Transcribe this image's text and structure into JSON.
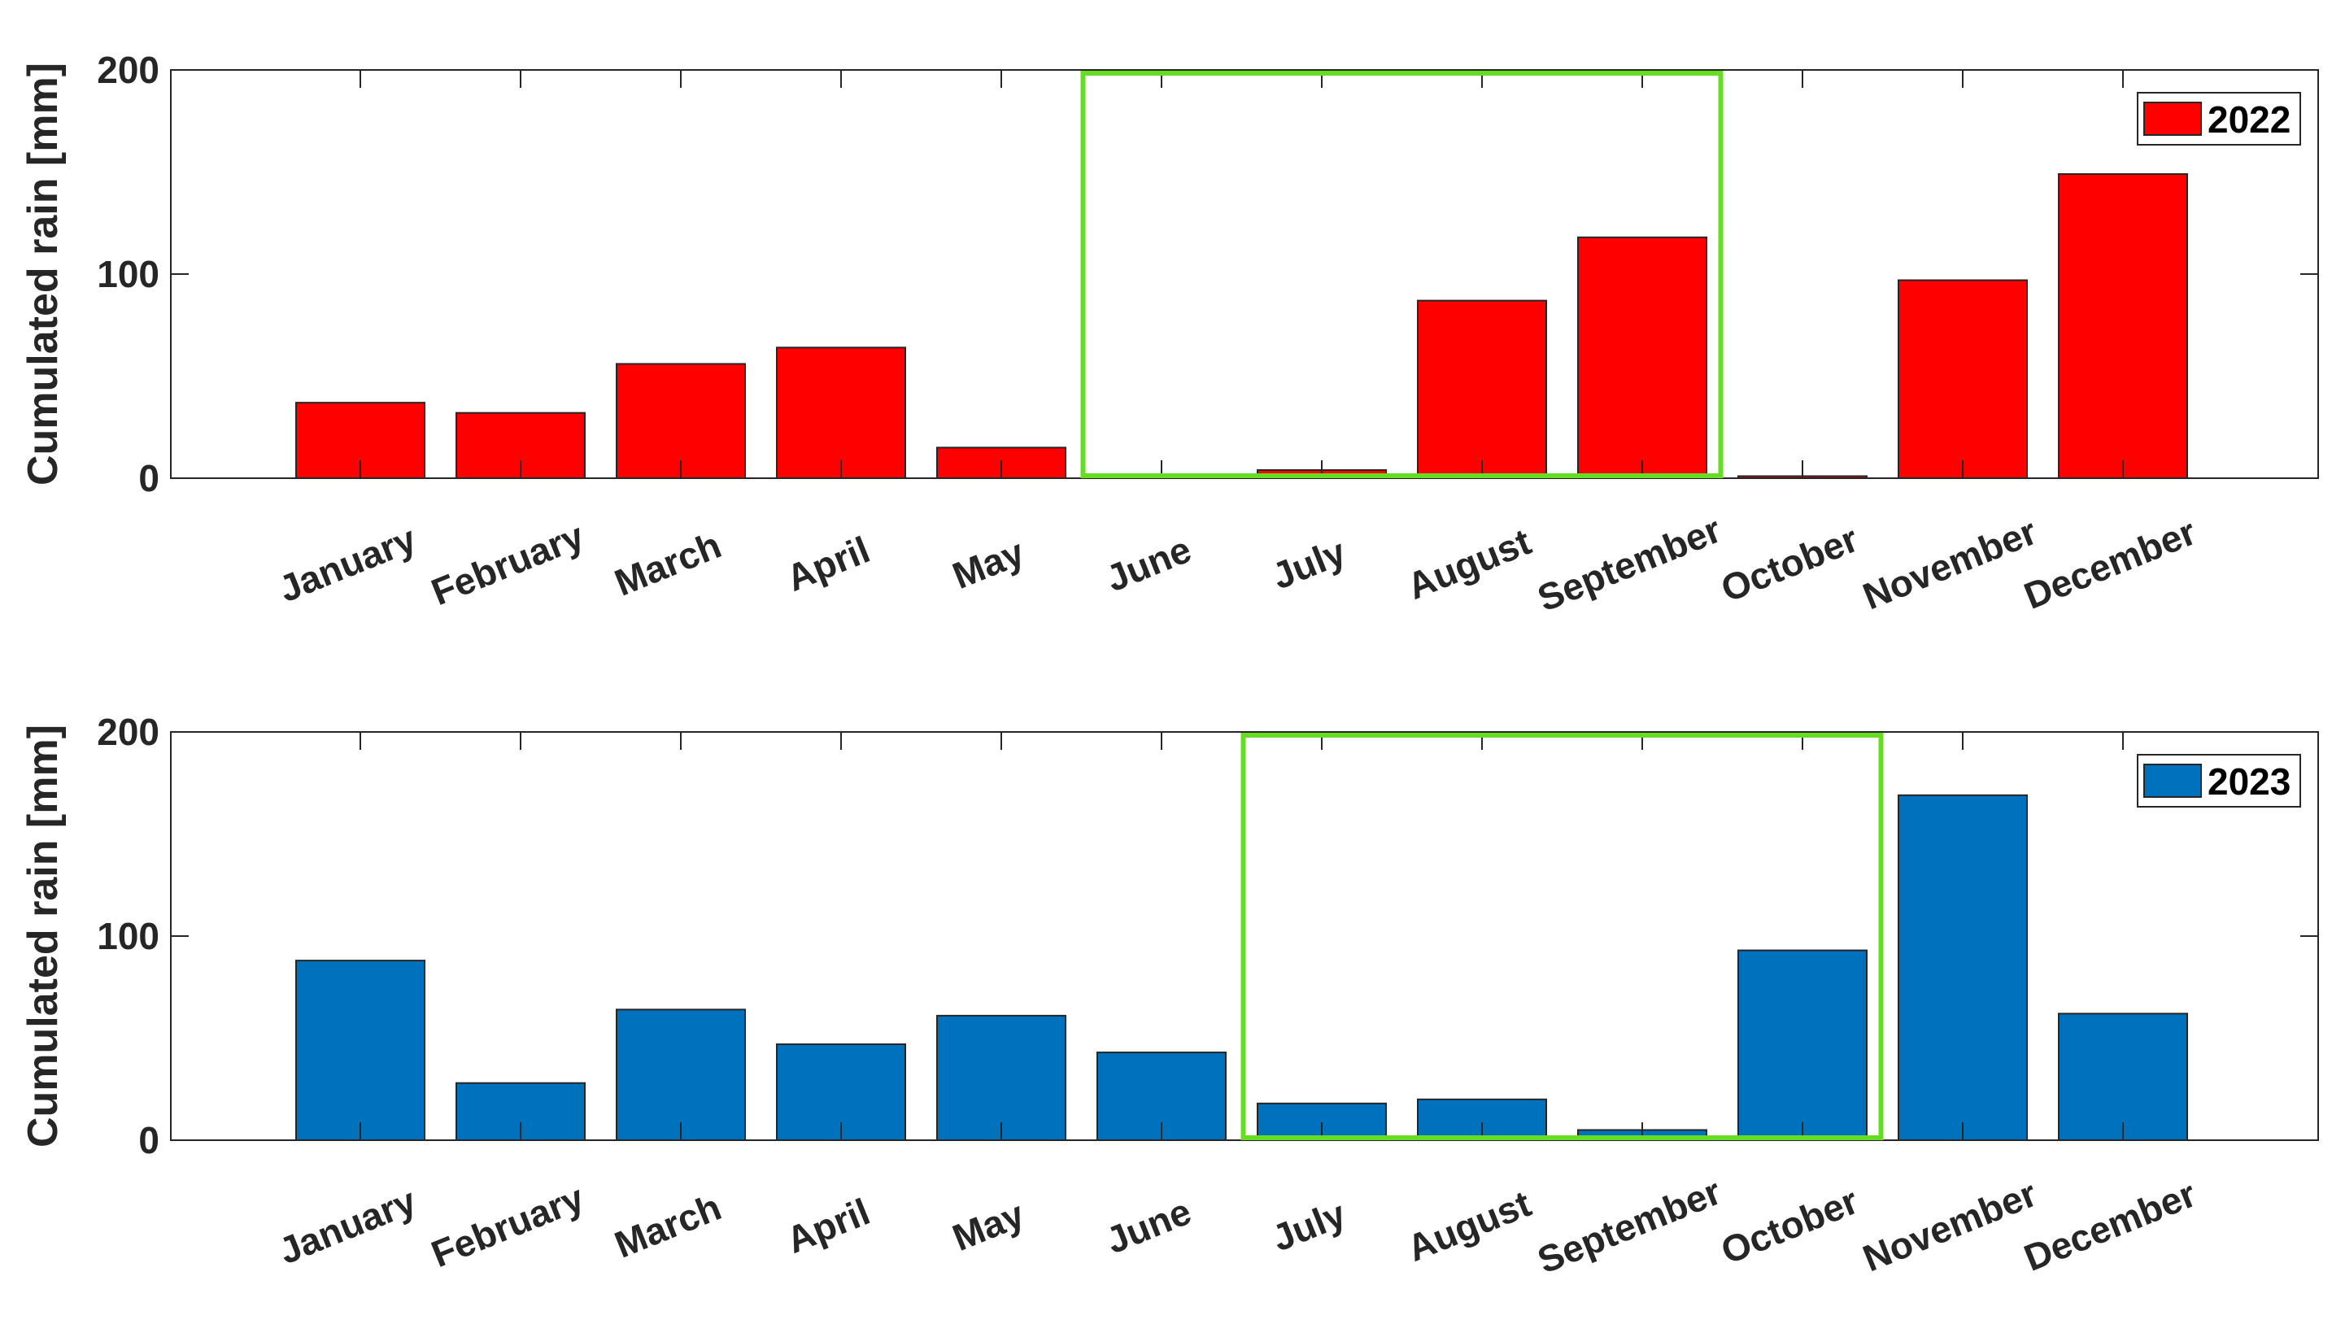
{
  "chart_data": [
    {
      "type": "bar",
      "categories": [
        "January",
        "February",
        "March",
        "April",
        "May",
        "June",
        "July",
        "August",
        "September",
        "October",
        "November",
        "December"
      ],
      "series": [
        {
          "name": "2022",
          "values": [
            37,
            32,
            56,
            64,
            15,
            0,
            4,
            87,
            118,
            1,
            97,
            149
          ]
        }
      ],
      "ylabel": "Cumulated rain [mm]",
      "ylim": [
        0,
        200
      ],
      "yticks": [
        "0",
        "100",
        "200"
      ],
      "legend_position": "top-right",
      "grid": false,
      "colors": {
        "bar": "#ff0000",
        "highlight_box": "#66dd22"
      },
      "highlight": {
        "x_range": [
          "May",
          "September"
        ],
        "y_range": [
          0,
          200
        ]
      }
    },
    {
      "type": "bar",
      "categories": [
        "January",
        "February",
        "March",
        "April",
        "May",
        "June",
        "July",
        "August",
        "September",
        "October",
        "November",
        "December"
      ],
      "series": [
        {
          "name": "2023",
          "values": [
            88,
            28,
            64,
            47,
            61,
            43,
            18,
            20,
            5,
            93,
            169,
            62
          ]
        }
      ],
      "ylabel": "Cumulated rain [mm]",
      "ylim": [
        0,
        200
      ],
      "yticks": [
        "0",
        "100",
        "200"
      ],
      "legend_position": "top-right",
      "grid": false,
      "colors": {
        "bar": "#0072bd",
        "highlight_box": "#66dd22"
      },
      "highlight": {
        "x_range": [
          "June",
          "October"
        ],
        "y_range": [
          0,
          200
        ]
      }
    }
  ]
}
